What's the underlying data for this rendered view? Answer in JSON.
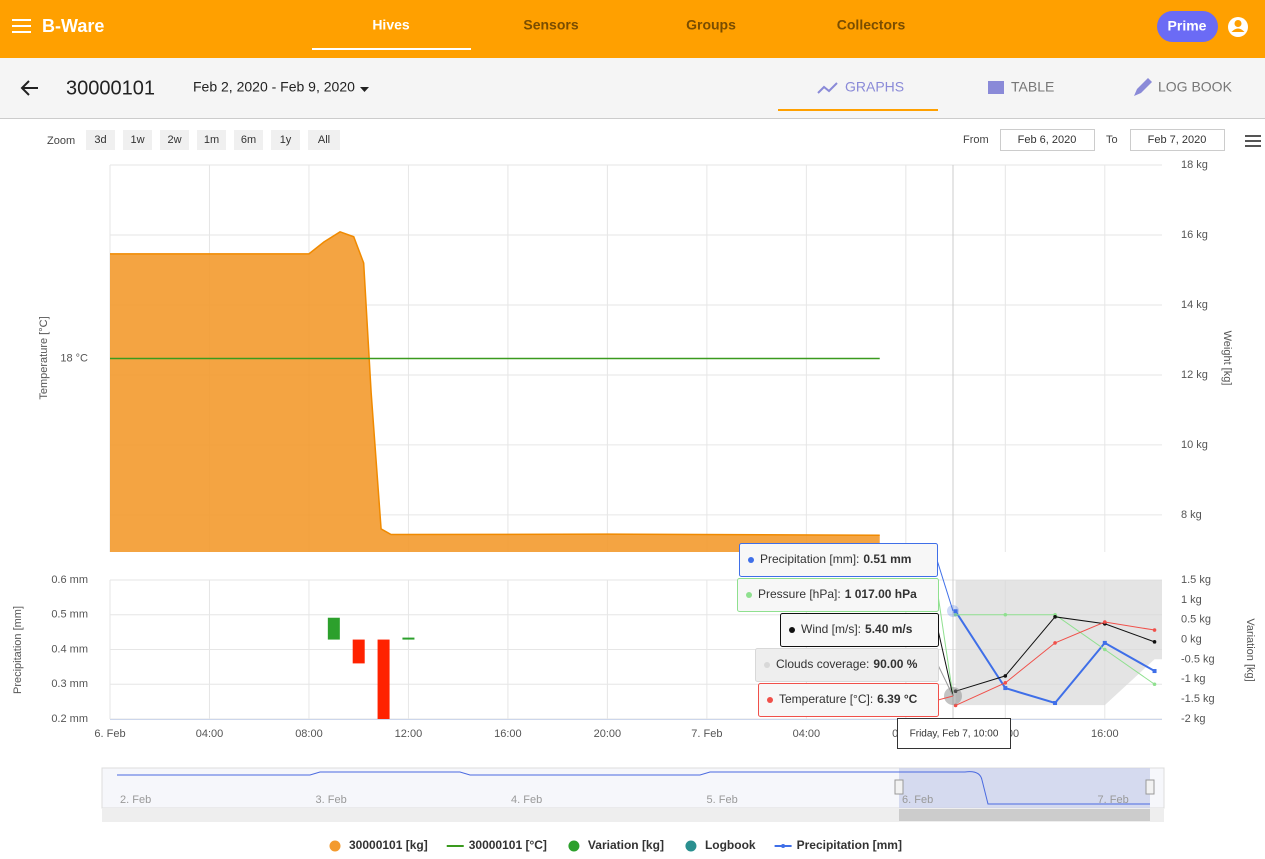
{
  "header": {
    "brand": "B-Ware",
    "nav": [
      "Hives",
      "Sensors",
      "Groups",
      "Collectors"
    ],
    "prime": "Prime"
  },
  "toolbar": {
    "hive_id": "30000101",
    "date_range": "Feb 2, 2020 - Feb 9, 2020",
    "tabs": [
      "GRAPHS",
      "TABLE",
      "LOG BOOK"
    ]
  },
  "zoom": {
    "label": "Zoom",
    "buttons": [
      "3d",
      "1w",
      "2w",
      "1m",
      "6m",
      "1y",
      "All"
    ],
    "from_label": "From",
    "from": "Feb 6, 2020",
    "to_label": "To",
    "to": "Feb 7, 2020"
  },
  "chart_data": [
    {
      "type": "area",
      "y_label": "Weight [kg]",
      "ylim": [
        6.94,
        18
      ],
      "yticks": [
        {
          "value": 8,
          "label": "8 kg"
        },
        {
          "value": 10,
          "label": "10 kg"
        },
        {
          "value": 12,
          "label": "12 kg"
        },
        {
          "value": 14,
          "label": "14 kg"
        },
        {
          "value": 16,
          "label": "16 kg"
        },
        {
          "value": 18,
          "label": "18 kg"
        }
      ],
      "y2_label": "Temperature [°C]",
      "y2lim": [
        17,
        19
      ],
      "y2ticks": [
        {
          "value": 18,
          "label": "18 °C"
        }
      ],
      "grid": true,
      "series": [
        {
          "name": "30000101 [kg]",
          "type": "area",
          "color": "#f39a2e",
          "x": [
            0,
            8,
            8.6,
            9.25,
            9.8,
            10.2,
            10.5,
            10.9,
            11.3,
            20,
            30.95
          ],
          "values": [
            15.46,
            15.46,
            15.8,
            16.09,
            15.95,
            15.2,
            11.5,
            7.6,
            7.44,
            7.45,
            7.42
          ]
        },
        {
          "name": "30000101 [°C]",
          "type": "line",
          "axis": "y2",
          "color": "#3a9a1e",
          "x": [
            0,
            30.95
          ],
          "values": [
            18,
            18
          ]
        }
      ]
    },
    {
      "type": "combo",
      "xlim": [
        0,
        42.3
      ],
      "xticks": [
        {
          "value": 0,
          "label": "6. Feb"
        },
        {
          "value": 4,
          "label": "04:00"
        },
        {
          "value": 8,
          "label": "08:00"
        },
        {
          "value": 12,
          "label": "12:00"
        },
        {
          "value": 16,
          "label": "16:00"
        },
        {
          "value": 20,
          "label": "20:00"
        },
        {
          "value": 24,
          "label": "7. Feb"
        },
        {
          "value": 28,
          "label": "04:00"
        },
        {
          "value": 32,
          "label": "08:00"
        },
        {
          "value": 36,
          "label": "12:00"
        },
        {
          "value": 40,
          "label": "16:00"
        }
      ],
      "y_label": "Precipitation [mm]",
      "ylim": [
        0.2,
        0.6
      ],
      "yticks": [
        {
          "value": 0.6,
          "label": "0.6 mm"
        },
        {
          "value": 0.5,
          "label": "0.5 mm"
        },
        {
          "value": 0.4,
          "label": "0.4 mm"
        },
        {
          "value": 0.3,
          "label": "0.3 mm"
        },
        {
          "value": 0.2,
          "label": "0.2 mm"
        }
      ],
      "y2_label": "Variation [kg]",
      "y2lim": [
        -2,
        1.5
      ],
      "y2ticks": [
        {
          "value": 1.5,
          "label": "1.5 kg"
        },
        {
          "value": 1,
          "label": "1 kg"
        },
        {
          "value": 0.5,
          "label": "0.5 kg"
        },
        {
          "value": 0,
          "label": "0 kg"
        },
        {
          "value": -0.5,
          "label": "-0.5 kg"
        },
        {
          "value": -1,
          "label": "-1 kg"
        },
        {
          "value": -1.5,
          "label": "-1.5 kg"
        },
        {
          "value": -2,
          "label": "-2 kg"
        }
      ],
      "grid": true,
      "series": [
        {
          "name": "Variation [kg]",
          "type": "bar",
          "axis": "y2",
          "color": "#2ca02c",
          "negative_color": "#ff2200",
          "x": [
            9,
            10,
            11,
            12
          ],
          "values": [
            0.55,
            -0.6,
            -2,
            0.05
          ]
        },
        {
          "name": "Logbook",
          "type": "flag",
          "color": "#2a8f8f",
          "x": [],
          "values": []
        },
        {
          "name": "Precipitation [mm]",
          "type": "line",
          "color": "#3f6fe8",
          "x": [
            34,
            36,
            38,
            40,
            42
          ],
          "values": [
            0.51,
            0.289,
            0.246,
            0.419,
            0.338
          ]
        }
      ],
      "weather": [
        {
          "name": "Clouds coverage",
          "type": "area",
          "color": "#d8d8d8",
          "ylim": [
            0,
            100
          ],
          "x": [
            34,
            36,
            38,
            40,
            42
          ],
          "values": [
            90,
            90,
            90,
            90,
            57
          ]
        },
        {
          "name": "Pressure [hPa]",
          "type": "line",
          "color": "#8fe08f",
          "ylim": [
            990,
            1026
          ],
          "x": [
            34,
            36,
            38,
            40,
            42
          ],
          "values": [
            1017,
            1017,
            1017,
            1008,
            999
          ]
        },
        {
          "name": "Wind [m/s]",
          "type": "line",
          "color": "#111111",
          "ylim": [
            5,
            7
          ],
          "x": [
            34,
            36,
            38,
            40,
            42
          ],
          "values": [
            5.4,
            5.62,
            6.47,
            6.37,
            6.11
          ]
        },
        {
          "name": "Temperature [°C]",
          "type": "line",
          "color": "#f0504a",
          "ylim": [
            6,
            10
          ],
          "x": [
            34,
            36,
            38,
            40,
            42
          ],
          "values": [
            6.39,
            7.04,
            8.19,
            8.79,
            8.56
          ]
        }
      ]
    }
  ],
  "tooltip": {
    "date": "Friday, Feb 7, 10:00",
    "items": [
      {
        "label": "Precipitation [mm]:",
        "value_label": "0.51 mm",
        "color": "#3f6fe8"
      },
      {
        "label": "Pressure [hPa]:",
        "value_label": "1 017.00 hPa",
        "color": "#8fe08f"
      },
      {
        "label": "Wind [m/s]:",
        "value_label": "5.40 m/s",
        "color": "#111111"
      },
      {
        "label": "Clouds coverage:",
        "value_label": "90.00 %",
        "color": "#d8d8d8"
      },
      {
        "label": "Temperature [°C]:",
        "value_label": "6.39 °C",
        "color": "#f0504a"
      }
    ]
  },
  "navigator": {
    "labels": [
      "2. Feb",
      "3. Feb",
      "4. Feb",
      "5. Feb",
      "6. Feb",
      "7. Feb"
    ]
  }
}
